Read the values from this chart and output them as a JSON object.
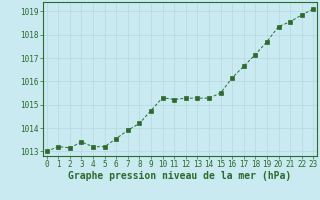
{
  "x": [
    0,
    1,
    2,
    3,
    4,
    5,
    6,
    7,
    8,
    9,
    10,
    11,
    12,
    13,
    14,
    15,
    16,
    17,
    18,
    19,
    20,
    21,
    22,
    23
  ],
  "y": [
    1013.0,
    1013.2,
    1013.15,
    1013.4,
    1013.2,
    1013.2,
    1013.55,
    1013.9,
    1014.2,
    1014.75,
    1015.3,
    1015.22,
    1015.28,
    1015.28,
    1015.28,
    1015.5,
    1016.15,
    1016.65,
    1017.15,
    1017.7,
    1018.35,
    1018.55,
    1018.85,
    1019.1
  ],
  "line_color": "#2d6a2d",
  "marker_color": "#2d6a2d",
  "bg_color": "#c8eaf0",
  "grid_color": "#b8d8e0",
  "axis_color": "#2d6a2d",
  "xlabel": "Graphe pression niveau de la mer (hPa)",
  "xlabel_color": "#2d6a2d",
  "ylim": [
    1012.8,
    1019.4
  ],
  "yticks": [
    1013,
    1014,
    1015,
    1016,
    1017,
    1018,
    1019
  ],
  "xticks": [
    0,
    1,
    2,
    3,
    4,
    5,
    6,
    7,
    8,
    9,
    10,
    11,
    12,
    13,
    14,
    15,
    16,
    17,
    18,
    19,
    20,
    21,
    22,
    23
  ],
  "tick_label_fontsize": 5.5,
  "xlabel_fontsize": 7.0,
  "tick_color": "#2d6a2d",
  "xlim": [
    -0.3,
    23.3
  ]
}
